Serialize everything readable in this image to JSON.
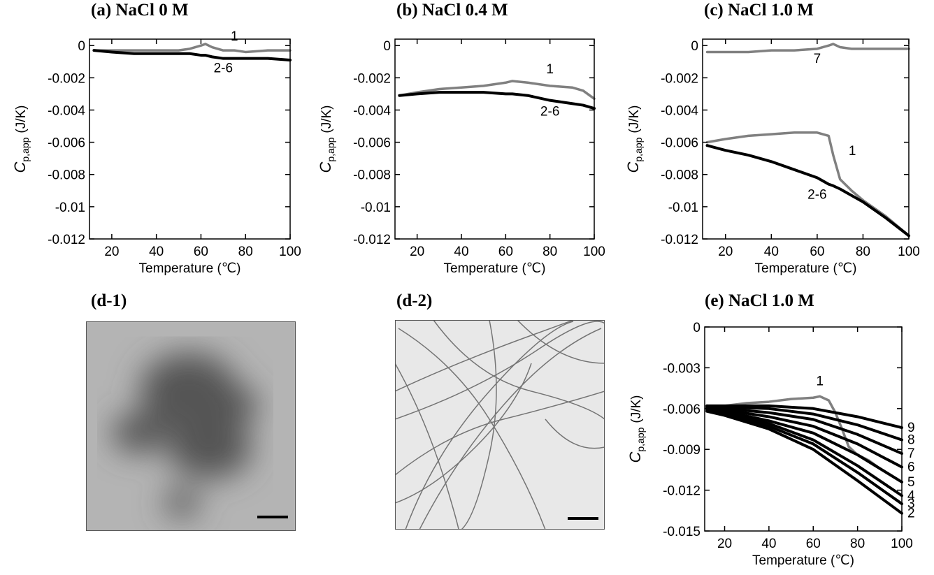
{
  "chart_data": [
    {
      "type": "line",
      "title": "(a) NaCl 0 M",
      "xlabel": "Temperature (℃)",
      "ylabel": {
        "symbol": "C",
        "subscript": "p,app",
        "unit": "(J/K)"
      },
      "xlim": [
        10,
        100
      ],
      "xticks": [
        20,
        40,
        60,
        80,
        100
      ],
      "ylim": [
        -0.012,
        0.0004
      ],
      "yticks": [
        0,
        -0.002,
        -0.004,
        -0.006,
        -0.008,
        -0.01,
        -0.012
      ],
      "x": [
        12,
        20,
        30,
        40,
        50,
        55,
        60,
        62,
        65,
        70,
        75,
        80,
        90,
        100
      ],
      "series": [
        {
          "name": "1",
          "color": "#808080",
          "values": [
            -0.0003,
            -0.0003,
            -0.0003,
            -0.0003,
            -0.0003,
            -0.0002,
            0,
            0.0001,
            -0.0001,
            -0.0003,
            -0.0003,
            -0.0004,
            -0.0003,
            -0.0003
          ]
        },
        {
          "name": "2-6",
          "color": "#000000",
          "values": [
            -0.0003,
            -0.0004,
            -0.0005,
            -0.0005,
            -0.0005,
            -0.0005,
            -0.0006,
            -0.0006,
            -0.0007,
            -0.0008,
            -0.0008,
            -0.0008,
            -0.0008,
            -0.0009
          ]
        }
      ]
    },
    {
      "type": "line",
      "title": "(b) NaCl 0.4 M",
      "xlabel": "Temperature (℃)",
      "ylabel": {
        "symbol": "C",
        "subscript": "p,app",
        "unit": "(J/K)"
      },
      "xlim": [
        10,
        100
      ],
      "xticks": [
        20,
        40,
        60,
        80,
        100
      ],
      "ylim": [
        -0.012,
        0.0004
      ],
      "yticks": [
        0,
        -0.002,
        -0.004,
        -0.006,
        -0.008,
        -0.01,
        -0.012
      ],
      "x": [
        12,
        20,
        30,
        40,
        50,
        60,
        63,
        70,
        80,
        90,
        95,
        100
      ],
      "series": [
        {
          "name": "1",
          "color": "#808080",
          "values": [
            -0.0031,
            -0.0029,
            -0.0027,
            -0.0026,
            -0.0025,
            -0.0023,
            -0.0022,
            -0.0023,
            -0.0025,
            -0.0026,
            -0.0028,
            -0.0033
          ]
        },
        {
          "name": "2-6",
          "color": "#000000",
          "values": [
            -0.0031,
            -0.003,
            -0.0029,
            -0.0029,
            -0.0029,
            -0.003,
            -0.003,
            -0.0031,
            -0.0034,
            -0.0036,
            -0.0037,
            -0.0039
          ]
        }
      ]
    },
    {
      "type": "line",
      "title": "(c) NaCl 1.0 M",
      "xlabel": "Temperature (℃)",
      "ylabel": {
        "symbol": "C",
        "subscript": "p,app",
        "unit": "(J/K)"
      },
      "xlim": [
        10,
        100
      ],
      "xticks": [
        20,
        40,
        60,
        80,
        100
      ],
      "ylim": [
        -0.012,
        0.0004
      ],
      "yticks": [
        0,
        -0.002,
        -0.004,
        -0.006,
        -0.008,
        -0.01,
        -0.012
      ],
      "x": [
        12,
        20,
        30,
        40,
        50,
        60,
        65,
        67,
        70,
        75,
        80,
        90,
        100
      ],
      "series": [
        {
          "name": "7",
          "color": "#808080",
          "values": [
            -0.0004,
            -0.0004,
            -0.0004,
            -0.0003,
            -0.0003,
            -0.0002,
            0,
            0.0001,
            -0.0001,
            -0.0002,
            -0.0002,
            -0.0002,
            -0.0002
          ]
        },
        {
          "name": "1",
          "color": "#808080",
          "values": [
            -0.006,
            -0.0058,
            -0.0056,
            -0.0055,
            -0.0054,
            -0.0054,
            -0.0056,
            -0.0068,
            -0.0083,
            -0.009,
            -0.0096,
            -0.0106,
            -0.0118
          ]
        },
        {
          "name": "2-6",
          "color": "#000000",
          "values": [
            -0.0062,
            -0.0065,
            -0.0068,
            -0.0072,
            -0.0077,
            -0.0082,
            -0.0086,
            -0.0087,
            -0.0089,
            -0.0093,
            -0.0097,
            -0.0107,
            -0.0118
          ]
        }
      ]
    },
    {
      "type": "line",
      "title": "(e) NaCl 1.0 M",
      "xlabel": "Temperature (℃)",
      "ylabel": {
        "symbol": "C",
        "subscript": "p,app",
        "unit": "(J/K)"
      },
      "xlim": [
        11,
        100
      ],
      "xticks": [
        20,
        40,
        60,
        80,
        100
      ],
      "ylim": [
        -0.015,
        0
      ],
      "yticks": [
        0,
        -0.003,
        -0.006,
        -0.009,
        -0.012,
        -0.015
      ],
      "x": [
        12,
        20,
        40,
        60,
        80,
        100
      ],
      "series": [
        {
          "name": "1",
          "color": "#808080",
          "x": [
            12,
            20,
            30,
            40,
            50,
            60,
            63,
            67,
            70,
            73,
            76,
            80,
            85,
            90,
            95,
            100
          ],
          "values": [
            -0.006,
            -0.0058,
            -0.0056,
            -0.0055,
            -0.0053,
            -0.0052,
            -0.0051,
            -0.0054,
            -0.0063,
            -0.0075,
            -0.0088,
            -0.0094,
            -0.0098,
            -0.0104,
            -0.0109,
            -0.0114
          ]
        },
        {
          "name": "9",
          "color": "#000000",
          "values": [
            -0.0058,
            -0.0058,
            -0.0058,
            -0.006,
            -0.0066,
            -0.0074
          ]
        },
        {
          "name": "8",
          "color": "#000000",
          "values": [
            -0.0058,
            -0.0059,
            -0.006,
            -0.0064,
            -0.0072,
            -0.0083
          ]
        },
        {
          "name": "7",
          "color": "#000000",
          "values": [
            -0.0059,
            -0.006,
            -0.0063,
            -0.0068,
            -0.0079,
            -0.0093
          ]
        },
        {
          "name": "6",
          "color": "#000000",
          "values": [
            -0.0059,
            -0.0061,
            -0.0066,
            -0.0073,
            -0.0086,
            -0.0103
          ]
        },
        {
          "name": "5",
          "color": "#000000",
          "values": [
            -0.006,
            -0.0062,
            -0.0069,
            -0.0078,
            -0.0094,
            -0.0114
          ]
        },
        {
          "name": "4",
          "color": "#000000",
          "values": [
            -0.006,
            -0.0063,
            -0.0071,
            -0.0083,
            -0.0102,
            -0.0124
          ]
        },
        {
          "name": "3",
          "color": "#000000",
          "values": [
            -0.0061,
            -0.0064,
            -0.0073,
            -0.0086,
            -0.0107,
            -0.013
          ]
        },
        {
          "name": "2",
          "color": "#000000",
          "values": [
            -0.0062,
            -0.0065,
            -0.0075,
            -0.009,
            -0.0113,
            -0.0137
          ]
        }
      ]
    }
  ],
  "images": [
    {
      "title": "(d-1)"
    },
    {
      "title": "(d-2)"
    }
  ]
}
